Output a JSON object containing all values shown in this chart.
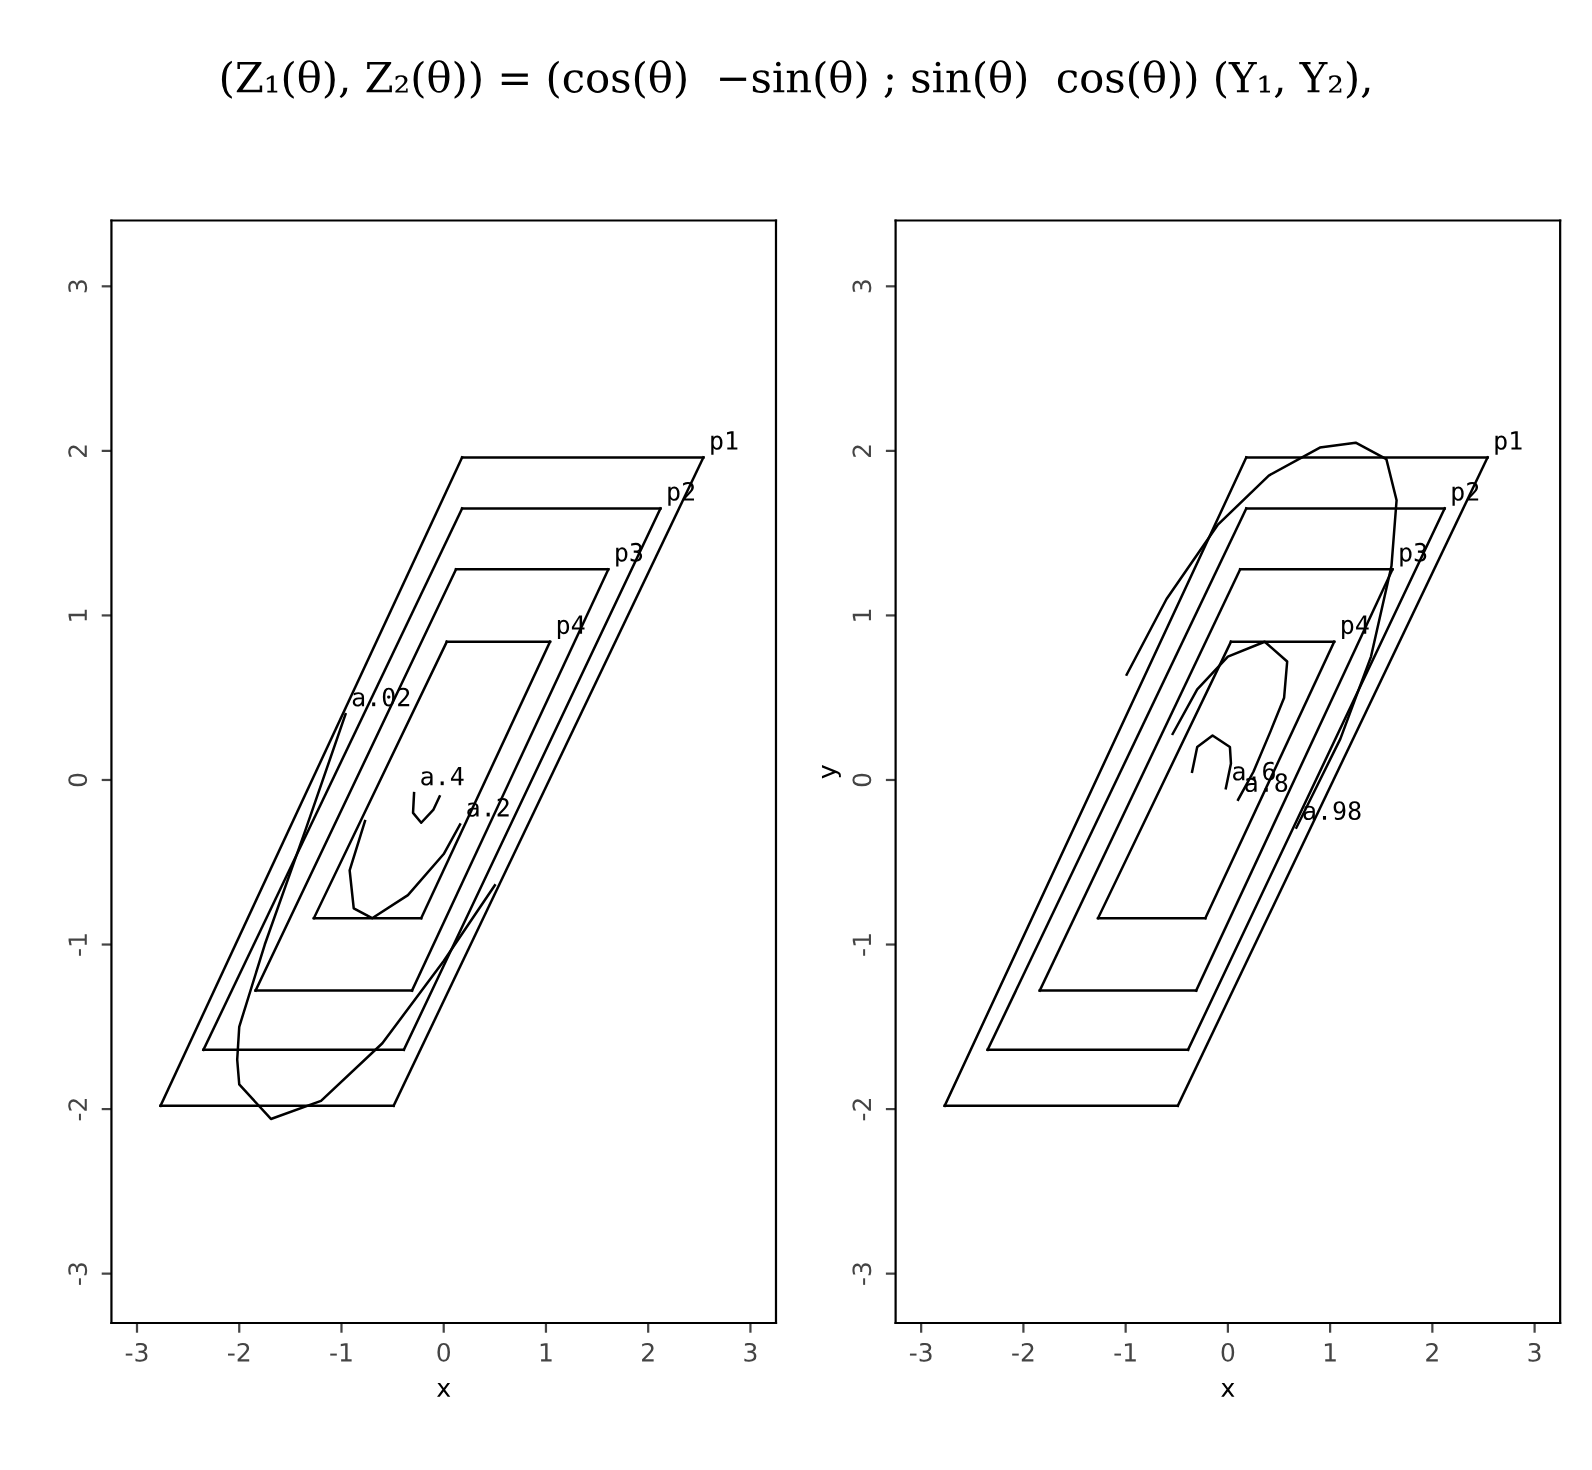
{
  "chart_data": [
    {
      "type": "line",
      "title": "(Z₁(θ), Z₂(θ)) = (cos(θ)  −sin(θ) ; sin(θ)  cos(θ)) (Y₁, Y₂),",
      "xlabel": "x",
      "xlim": [
        -3.25,
        3.25
      ],
      "ylim": [
        -3.3,
        3.4
      ],
      "xticks": [
        -3,
        -2,
        -1,
        0,
        1,
        2,
        3
      ],
      "yticks": [
        -3,
        -2,
        -1,
        0,
        1,
        2,
        3
      ],
      "grid": false,
      "series": [
        {
          "name": "p1",
          "color": "#000000",
          "x": [
            2.54,
            0.18
          ],
          "values": [
            1.96,
            1.96
          ]
        },
        {
          "color": "#000000",
          "x": [
            -0.49,
            2.54
          ],
          "values": [
            -1.98,
            1.96
          ]
        },
        {
          "color": "#000000",
          "x": [
            -2.77,
            -0.49
          ],
          "values": [
            -1.98,
            -1.98
          ]
        },
        {
          "color": "#000000",
          "x": [
            -2.77,
            0.18
          ],
          "values": [
            -1.98,
            1.96
          ]
        },
        {
          "name": "p2",
          "color": "#000000",
          "x": [
            2.12,
            0.18
          ],
          "values": [
            1.65,
            1.65
          ]
        },
        {
          "color": "#000000",
          "x": [
            -0.39,
            2.12
          ],
          "values": [
            -1.64,
            1.65
          ]
        },
        {
          "color": "#000000",
          "x": [
            -2.35,
            -0.39
          ],
          "values": [
            -1.64,
            -1.64
          ]
        },
        {
          "color": "#000000",
          "x": [
            -2.35,
            0.18
          ],
          "values": [
            -1.64,
            1.65
          ]
        },
        {
          "name": "p3",
          "color": "#000000",
          "x": [
            1.61,
            0.12
          ],
          "values": [
            1.28,
            1.28
          ]
        },
        {
          "color": "#000000",
          "x": [
            -0.31,
            1.61
          ],
          "values": [
            -1.28,
            1.28
          ]
        },
        {
          "color": "#000000",
          "x": [
            -1.84,
            -0.31
          ],
          "values": [
            -1.28,
            -1.28
          ]
        },
        {
          "color": "#000000",
          "x": [
            -1.84,
            0.12
          ],
          "values": [
            -1.28,
            1.28
          ]
        },
        {
          "color": "#000000",
          "x": [
            0.03,
            1.04
          ],
          "values": [
            0.84,
            0.84
          ]
        },
        {
          "name": "p4",
          "color": "#000000",
          "x": [
            1.04,
            -0.22
          ],
          "values": [
            0.84,
            -0.84
          ]
        },
        {
          "color": "#000000",
          "x": [
            -1.27,
            -0.22
          ],
          "values": [
            -0.84,
            -0.84
          ]
        },
        {
          "color": "#000000",
          "x": [
            -1.27,
            0.03
          ],
          "values": [
            -0.84,
            0.84
          ]
        },
        {
          "name": "a.02",
          "color": "#000000",
          "x": [
            -0.96,
            -1.35,
            -1.75,
            -2.0,
            -2.02,
            -2.0,
            -1.69,
            -1.2,
            -0.6,
            0.0,
            0.5
          ],
          "values": [
            0.4,
            -0.3,
            -1.0,
            -1.5,
            -1.7,
            -1.85,
            -2.06,
            -1.95,
            -1.6,
            -1.1,
            -0.64
          ]
        },
        {
          "name": "a.2",
          "color": "#000000",
          "x": [
            0.16,
            0.0,
            -0.35,
            -0.7,
            -0.88,
            -0.92,
            -0.77
          ],
          "values": [
            -0.27,
            -0.45,
            -0.7,
            -0.84,
            -0.78,
            -0.55,
            -0.25
          ]
        },
        {
          "name": "a.4",
          "color": "#000000",
          "x": [
            -0.29,
            -0.3,
            -0.22,
            -0.1,
            -0.04
          ],
          "values": [
            -0.08,
            -0.2,
            -0.26,
            -0.18,
            -0.1
          ]
        }
      ]
    },
    {
      "type": "line",
      "xlabel": "x",
      "ylabel": "y",
      "xlim": [
        -3.25,
        3.25
      ],
      "ylim": [
        -3.3,
        3.4
      ],
      "xticks": [
        -3,
        -2,
        -1,
        0,
        1,
        2,
        3
      ],
      "yticks": [
        -3,
        -2,
        -1,
        0,
        1,
        2,
        3
      ],
      "grid": false,
      "series": [
        {
          "name": "p1",
          "color": "#000000",
          "x": [
            2.54,
            0.18
          ],
          "values": [
            1.96,
            1.96
          ]
        },
        {
          "color": "#000000",
          "x": [
            -0.49,
            2.54
          ],
          "values": [
            -1.98,
            1.96
          ]
        },
        {
          "color": "#000000",
          "x": [
            -2.77,
            -0.49
          ],
          "values": [
            -1.98,
            -1.98
          ]
        },
        {
          "color": "#000000",
          "x": [
            -2.77,
            0.18
          ],
          "values": [
            -1.98,
            1.96
          ]
        },
        {
          "name": "p2",
          "color": "#000000",
          "x": [
            2.12,
            0.18
          ],
          "values": [
            1.65,
            1.65
          ]
        },
        {
          "color": "#000000",
          "x": [
            -0.39,
            2.12
          ],
          "values": [
            -1.64,
            1.65
          ]
        },
        {
          "color": "#000000",
          "x": [
            -2.35,
            -0.39
          ],
          "values": [
            -1.64,
            -1.64
          ]
        },
        {
          "color": "#000000",
          "x": [
            -2.35,
            0.18
          ],
          "values": [
            -1.64,
            1.65
          ]
        },
        {
          "name": "p3",
          "color": "#000000",
          "x": [
            1.61,
            0.12
          ],
          "values": [
            1.28,
            1.28
          ]
        },
        {
          "color": "#000000",
          "x": [
            -0.31,
            1.61
          ],
          "values": [
            -1.28,
            1.28
          ]
        },
        {
          "color": "#000000",
          "x": [
            -1.84,
            -0.31
          ],
          "values": [
            -1.28,
            -1.28
          ]
        },
        {
          "color": "#000000",
          "x": [
            -1.84,
            0.12
          ],
          "values": [
            -1.28,
            1.28
          ]
        },
        {
          "color": "#000000",
          "x": [
            0.03,
            1.04
          ],
          "values": [
            0.84,
            0.84
          ]
        },
        {
          "name": "p4",
          "color": "#000000",
          "x": [
            1.04,
            -0.22
          ],
          "values": [
            0.84,
            -0.84
          ]
        },
        {
          "color": "#000000",
          "x": [
            -1.27,
            -0.22
          ],
          "values": [
            -0.84,
            -0.84
          ]
        },
        {
          "color": "#000000",
          "x": [
            -1.27,
            0.03
          ],
          "values": [
            -0.84,
            0.84
          ]
        },
        {
          "name": "a.98",
          "color": "#000000",
          "x": [
            0.67,
            1.1,
            1.4,
            1.6,
            1.65,
            1.55,
            1.25,
            0.9,
            0.4,
            -0.1,
            -0.6,
            -0.99
          ],
          "values": [
            -0.29,
            0.25,
            0.75,
            1.3,
            1.7,
            1.95,
            2.05,
            2.02,
            1.85,
            1.55,
            1.1,
            0.64
          ]
        },
        {
          "name": "a.8",
          "color": "#000000",
          "x": [
            0.1,
            0.25,
            0.42,
            0.55,
            0.58,
            0.36,
            0.0,
            -0.3,
            -0.54
          ],
          "values": [
            -0.12,
            0.05,
            0.3,
            0.5,
            0.72,
            0.84,
            0.75,
            0.55,
            0.28
          ]
        },
        {
          "name": "a.6",
          "color": "#000000",
          "x": [
            -0.02,
            0.03,
            0.02,
            -0.15,
            -0.3,
            -0.35
          ],
          "values": [
            -0.05,
            0.1,
            0.2,
            0.27,
            0.2,
            0.05
          ]
        }
      ]
    }
  ]
}
